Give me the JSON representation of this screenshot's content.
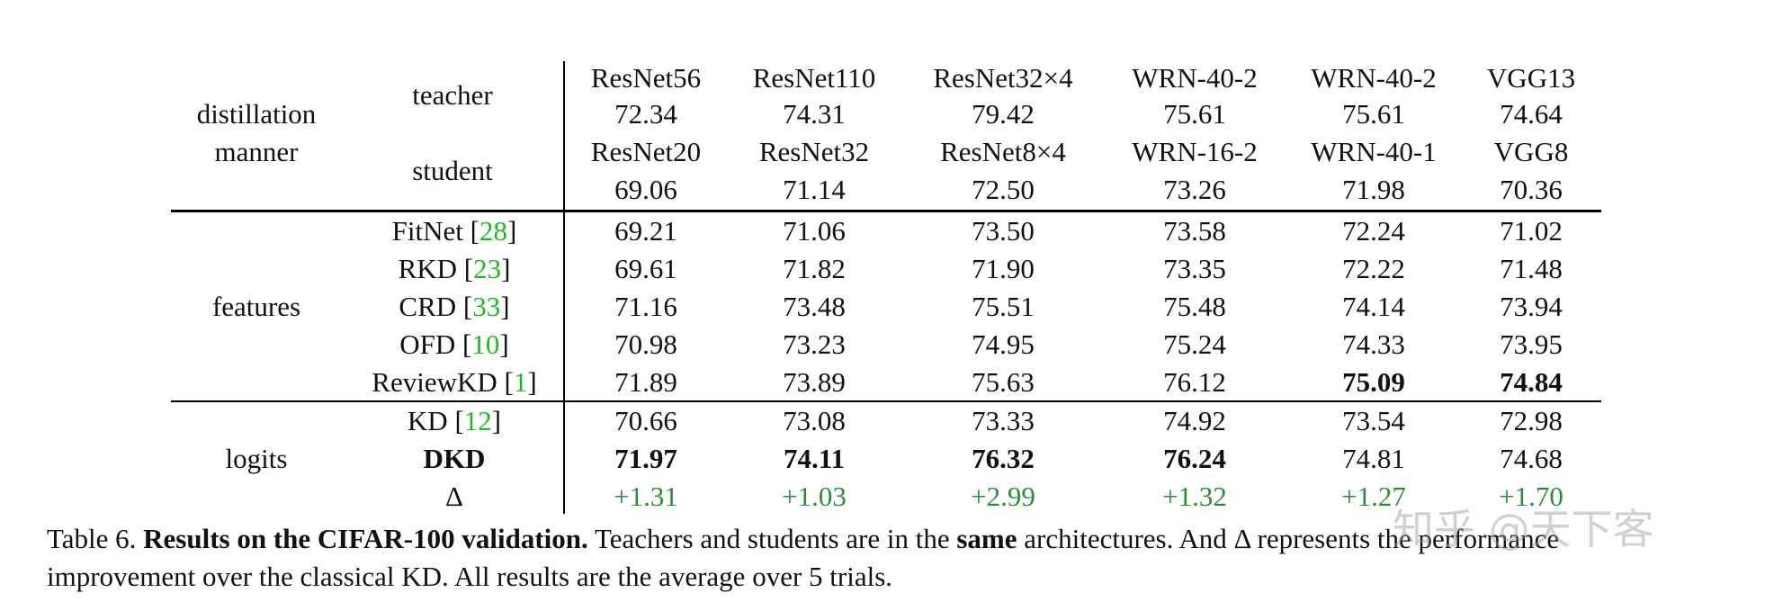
{
  "table": {
    "header": {
      "distillation_line1": "distillation",
      "distillation_line2": "manner",
      "teacher_label": "teacher",
      "student_label": "student",
      "teachers": [
        {
          "name": "ResNet56",
          "acc": "72.34"
        },
        {
          "name": "ResNet110",
          "acc": "74.31"
        },
        {
          "name": "ResNet32×4",
          "acc": "79.42"
        },
        {
          "name": "WRN-40-2",
          "acc": "75.61"
        },
        {
          "name": "WRN-40-2",
          "acc": "75.61"
        },
        {
          "name": "VGG13",
          "acc": "74.64"
        }
      ],
      "students": [
        {
          "name": "ResNet20",
          "acc": "69.06"
        },
        {
          "name": "ResNet32",
          "acc": "71.14"
        },
        {
          "name": "ResNet8×4",
          "acc": "72.50"
        },
        {
          "name": "WRN-16-2",
          "acc": "73.26"
        },
        {
          "name": "WRN-40-1",
          "acc": "71.98"
        },
        {
          "name": "VGG8",
          "acc": "70.36"
        }
      ]
    },
    "groups": [
      {
        "label": "features",
        "rows": [
          {
            "method": "FitNet",
            "ref": "28",
            "values": [
              "69.21",
              "71.06",
              "73.50",
              "73.58",
              "72.24",
              "71.02"
            ]
          },
          {
            "method": "RKD",
            "ref": "23",
            "values": [
              "69.61",
              "71.82",
              "71.90",
              "73.35",
              "72.22",
              "71.48"
            ]
          },
          {
            "method": "CRD",
            "ref": "33",
            "values": [
              "71.16",
              "73.48",
              "75.51",
              "75.48",
              "74.14",
              "73.94"
            ]
          },
          {
            "method": "OFD",
            "ref": "10",
            "values": [
              "70.98",
              "73.23",
              "74.95",
              "75.24",
              "74.33",
              "73.95"
            ]
          },
          {
            "method": "ReviewKD",
            "ref": "1",
            "values": [
              "71.89",
              "73.89",
              "75.63",
              "76.12",
              "75.09",
              "74.84"
            ]
          }
        ]
      },
      {
        "label": "logits",
        "rows": [
          {
            "method": "KD",
            "ref": "12",
            "values": [
              "70.66",
              "73.08",
              "73.33",
              "74.92",
              "73.54",
              "72.98"
            ]
          },
          {
            "method": "DKD",
            "ref": "",
            "values": [
              "71.97",
              "74.11",
              "76.32",
              "76.24",
              "74.81",
              "74.68"
            ]
          },
          {
            "method": "Δ",
            "ref": "",
            "values": [
              "+1.31",
              "+1.03",
              "+2.99",
              "+1.32",
              "+1.27",
              "+1.70"
            ]
          }
        ]
      }
    ]
  },
  "caption": {
    "label": "Table 6.",
    "bold_title": "Results on the CIFAR-100 validation.",
    "text_a": "Teachers and students are in the",
    "bold_same": "same",
    "text_b": "architectures. And Δ represents the performance",
    "line2": "improvement over the classical KD. All results are the average over 5 trials."
  },
  "watermark": "知乎 @天下客",
  "colors": {
    "citation": "#1fb81f",
    "improvement": "#2e8b3a"
  }
}
